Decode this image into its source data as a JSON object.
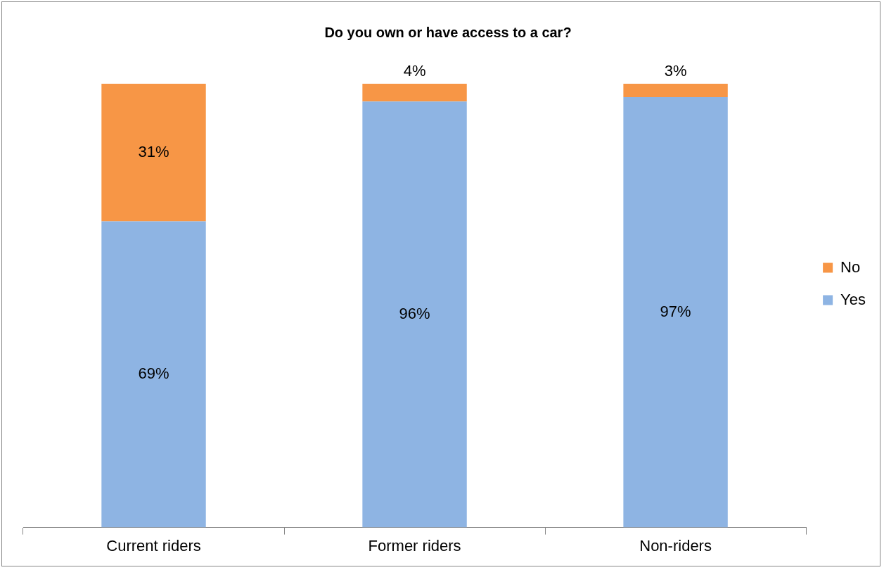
{
  "chart_data": {
    "type": "bar",
    "title": "Do you own or have access to a car?",
    "categories": [
      "Current riders",
      "Former riders",
      "Non-riders"
    ],
    "stacked": true,
    "ylim": [
      0,
      100
    ],
    "tick_labels": "x",
    "legend": "right",
    "grid": false,
    "series": [
      {
        "name": "Yes",
        "color": "#8eb4e3",
        "values": [
          69,
          96,
          97
        ],
        "value_labels": [
          "69%",
          "96%",
          "97%"
        ]
      },
      {
        "name": "No",
        "color": "#f79646",
        "values": [
          31,
          4,
          3
        ],
        "value_labels": [
          "31%",
          "4%",
          "3%"
        ]
      }
    ]
  }
}
